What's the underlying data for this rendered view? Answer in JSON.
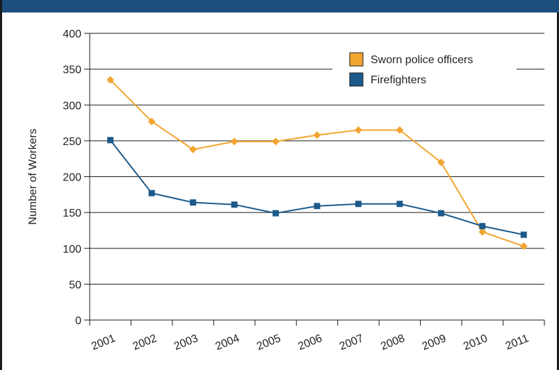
{
  "chart_data": {
    "type": "line",
    "categories": [
      "2001",
      "2002",
      "2003",
      "2004",
      "2005",
      "2006",
      "2007",
      "2008",
      "2009",
      "2010",
      "2011"
    ],
    "series": [
      {
        "name": "Sworn police officers",
        "color": "#f2a531",
        "marker": "diamond",
        "values": [
          335,
          277,
          238,
          249,
          249,
          258,
          265,
          265,
          220,
          123,
          103
        ]
      },
      {
        "name": "Firefighters",
        "color": "#1c5a8a",
        "marker": "square",
        "values": [
          251,
          177,
          164,
          161,
          149,
          159,
          162,
          162,
          149,
          131,
          119
        ]
      }
    ],
    "xlabel": "",
    "ylabel": "Number of Workers",
    "ylim": [
      0,
      400
    ],
    "yticks": [
      "0",
      "50",
      "100",
      "150",
      "200",
      "250",
      "300",
      "350",
      "400"
    ],
    "grid": "horizontal",
    "legend_position": "top-right",
    "frame_color": "#1c4e7e"
  }
}
